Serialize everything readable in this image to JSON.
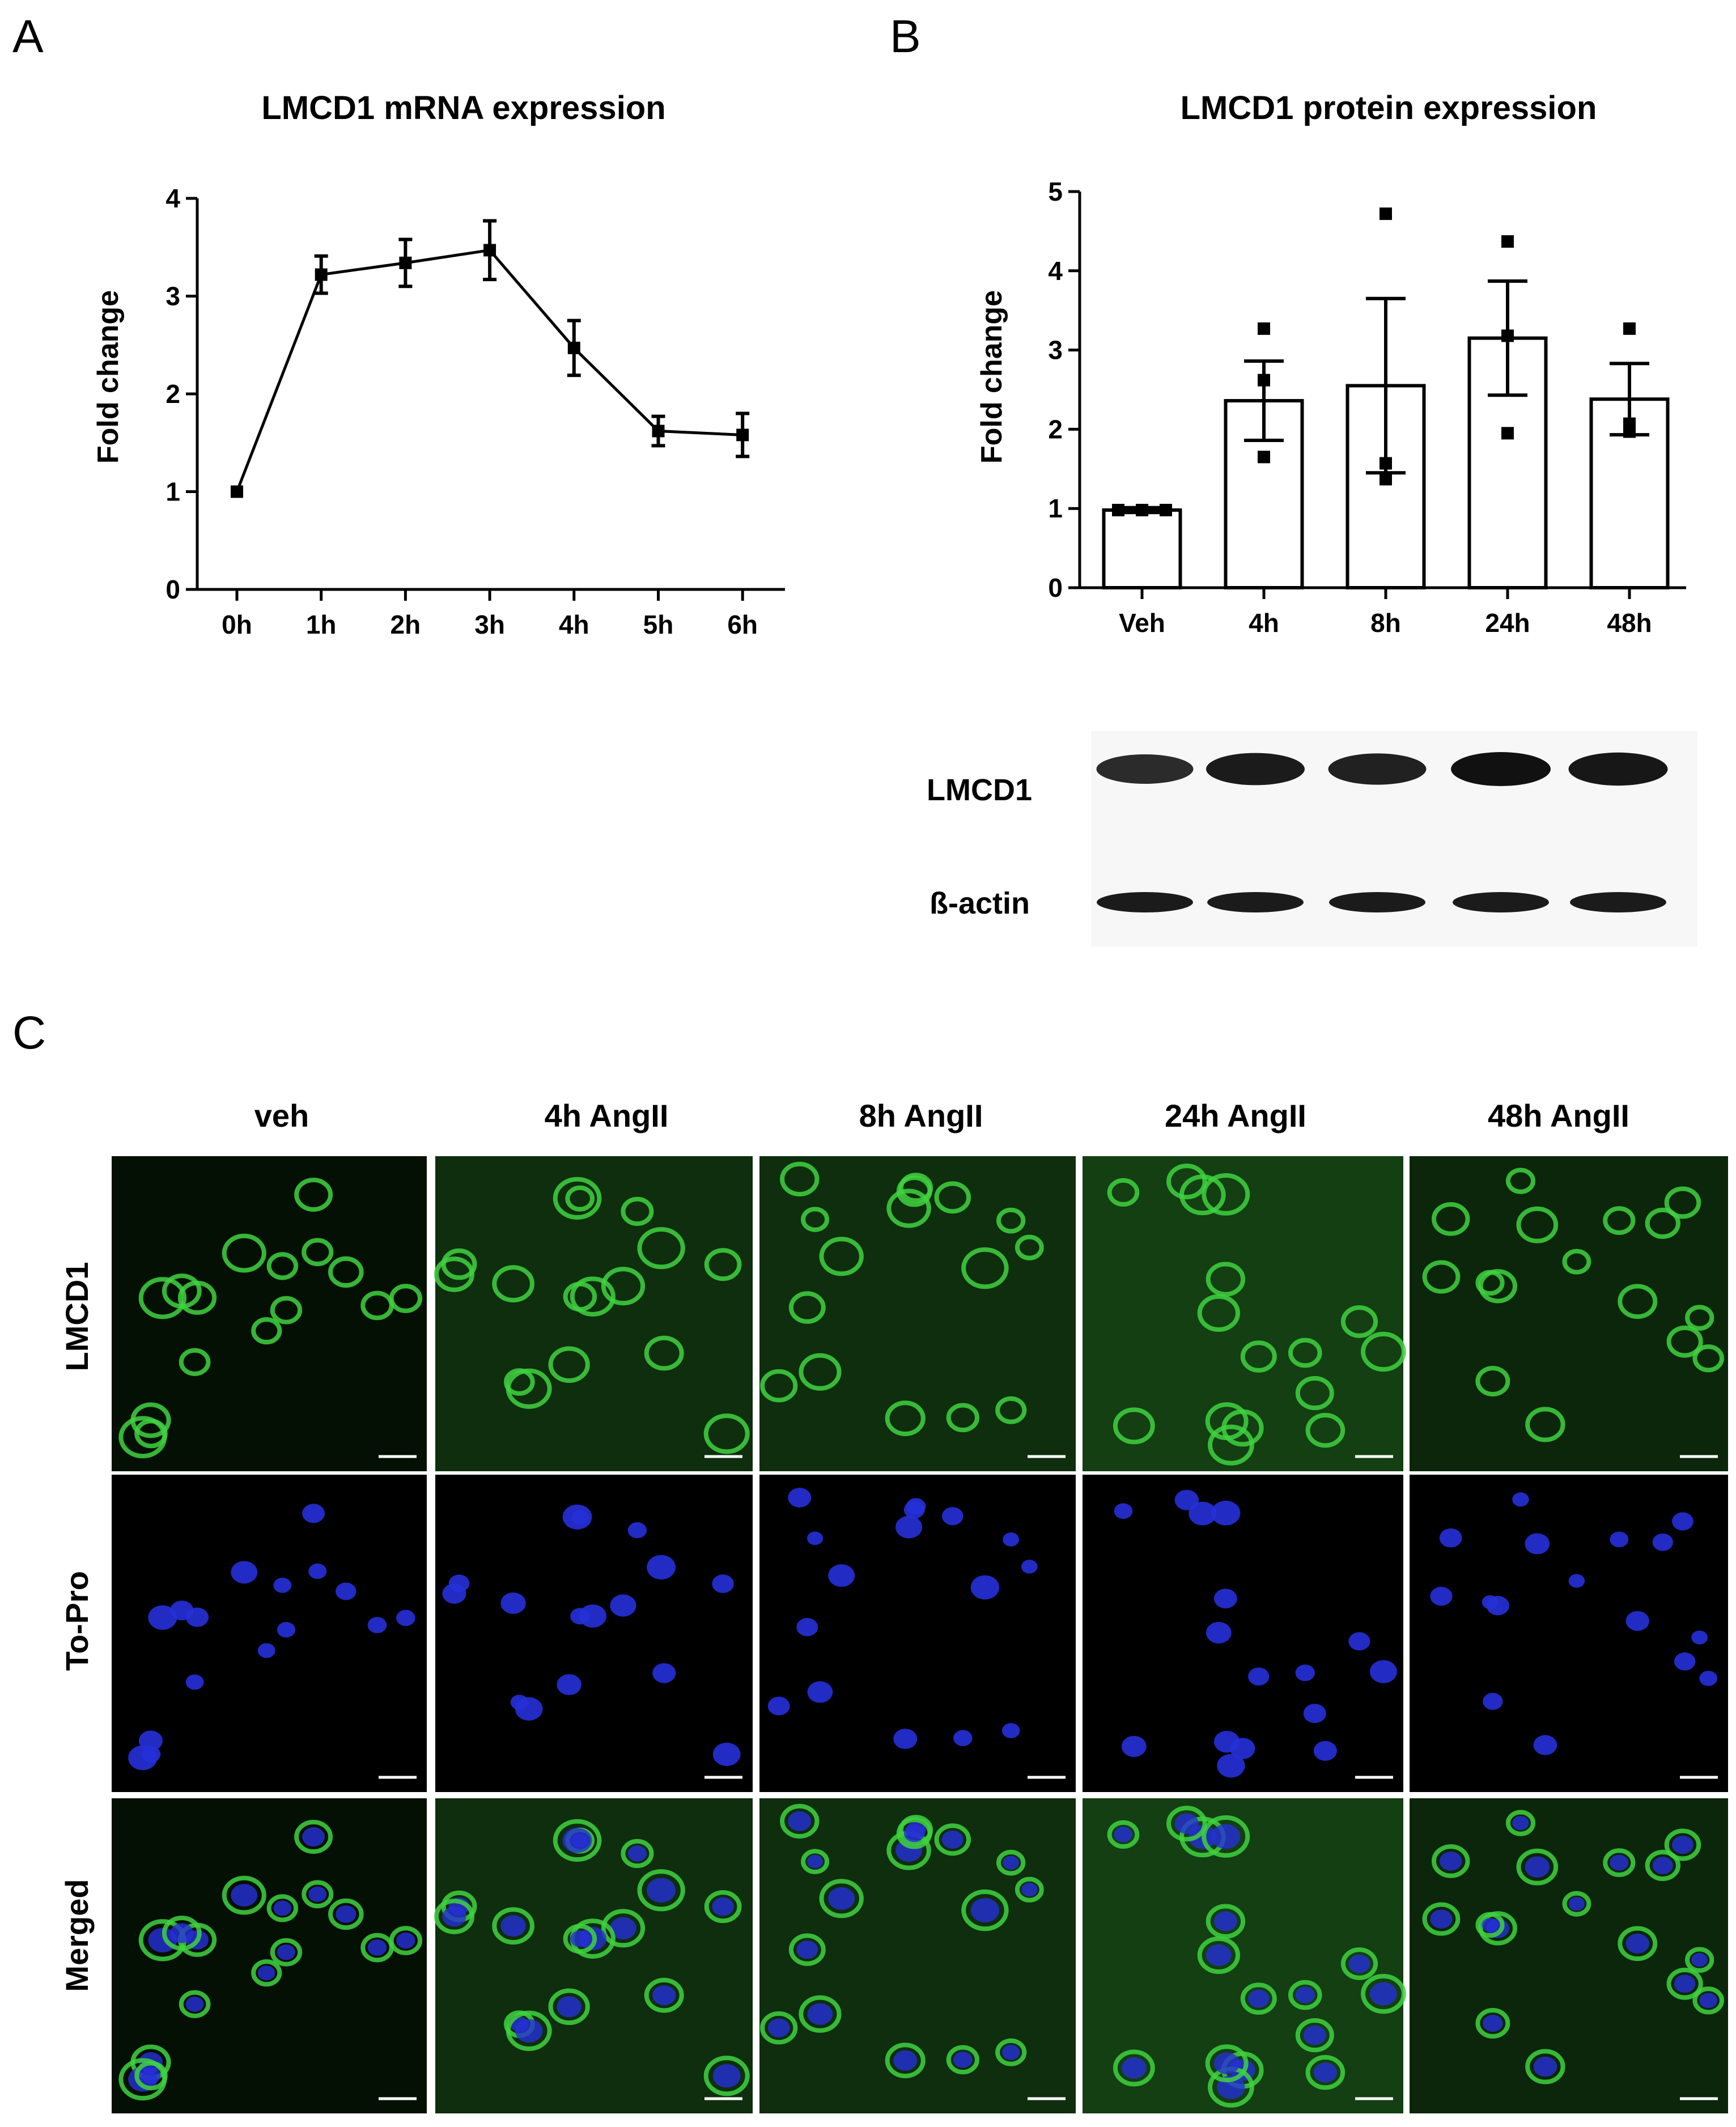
{
  "panels": {
    "a": "A",
    "b": "B",
    "c": "C"
  },
  "colors": {
    "ink": "#000000",
    "bar_fill": "#ffffff",
    "green": "#3fd23f",
    "blue": "#2630d8",
    "blot_bg": "#f2f2f2",
    "band": "#111111"
  },
  "chart_data": [
    {
      "type": "line",
      "title": "LMCD1 mRNA expression",
      "xlabel": "",
      "ylabel": "Fold change",
      "categories": [
        "0h",
        "1h",
        "2h",
        "3h",
        "4h",
        "5h",
        "6h"
      ],
      "values": [
        1.0,
        3.22,
        3.34,
        3.47,
        2.47,
        1.62,
        1.58
      ],
      "error": [
        0,
        0.19,
        0.24,
        0.3,
        0.28,
        0.15,
        0.22
      ],
      "ylim": [
        0,
        4
      ],
      "yticks": [
        "0",
        "1",
        "2",
        "3",
        "4"
      ],
      "grid": false,
      "legend": "none"
    },
    {
      "type": "bar",
      "title": "LMCD1 protein expression",
      "xlabel": "",
      "ylabel": "Fold change",
      "categories": [
        "Veh",
        "4h",
        "8h",
        "24h",
        "48h"
      ],
      "values": [
        0.98,
        2.36,
        2.55,
        3.15,
        2.38
      ],
      "error": [
        0.03,
        0.5,
        1.1,
        0.72,
        0.45
      ],
      "points": [
        [
          0.98,
          0.98,
          0.98
        ],
        [
          3.27,
          2.62,
          1.65
        ],
        [
          4.72,
          1.57,
          1.37
        ],
        [
          4.37,
          3.18,
          1.95
        ],
        [
          3.27,
          2.07,
          1.97
        ]
      ],
      "ylim": [
        0,
        5
      ],
      "yticks": [
        "0",
        "1",
        "2",
        "3",
        "4",
        "5"
      ],
      "grid": false,
      "legend": "none"
    }
  ],
  "blot": {
    "rows": [
      "LMCD1",
      "ß-actin"
    ],
    "lmcd1_intensity": [
      0.75,
      0.9,
      0.85,
      1.0,
      0.95
    ],
    "actin_intensity": [
      0.9,
      0.9,
      0.9,
      0.9,
      0.9
    ]
  },
  "microscopy": {
    "columns": [
      "veh",
      "4h AngII",
      "8h AngII",
      "24h AngII",
      "48h AngII"
    ],
    "rows": [
      "LMCD1",
      "To-Pro",
      "Merged"
    ]
  }
}
